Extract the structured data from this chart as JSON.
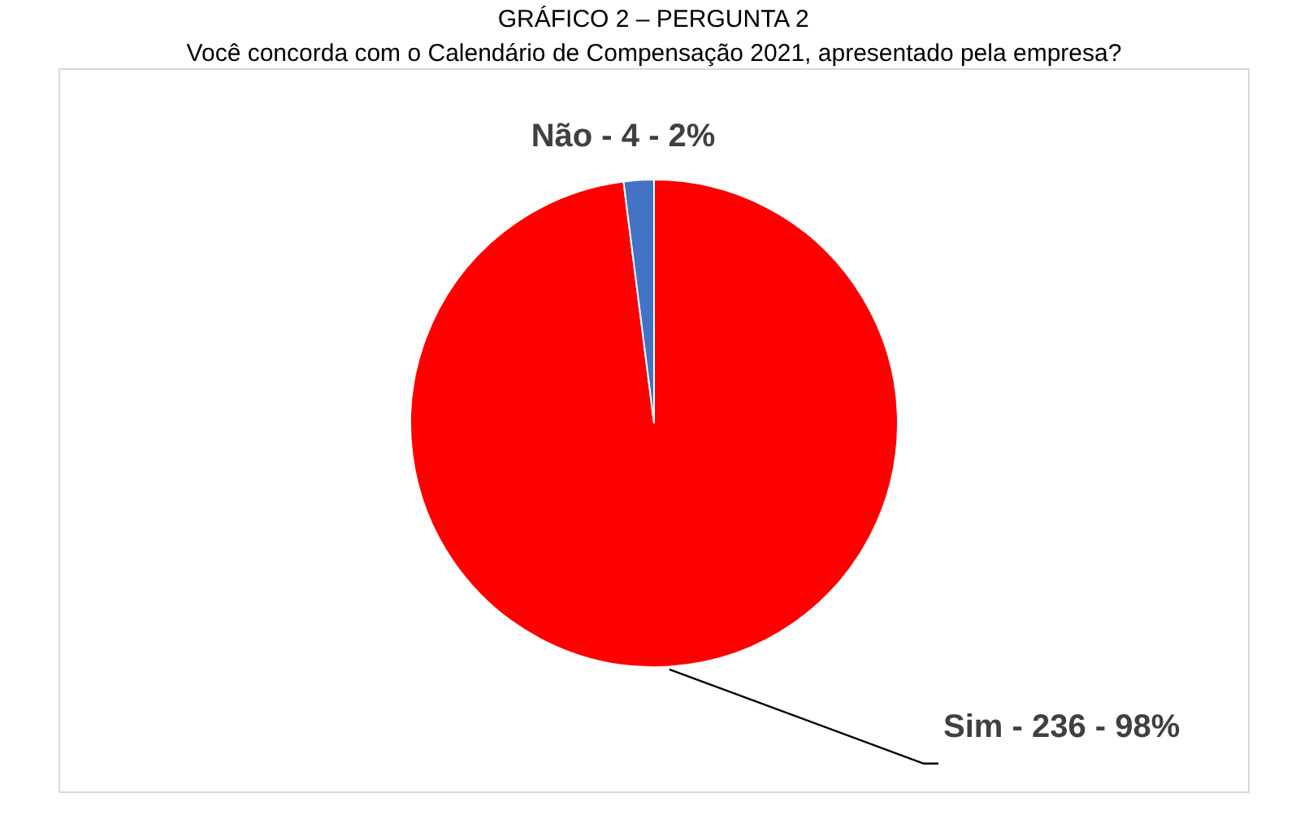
{
  "chart_data": {
    "type": "pie",
    "title": "GRÁFICO 2 – PERGUNTA 2",
    "subtitle": "Você concorda com o Calendário de Compensação 2021, apresentado pela empresa?",
    "categories": [
      "Sim -  236  - 98%",
      "Não - 4 - 2%"
    ],
    "values": [
      98,
      2
    ],
    "colors": [
      "#ff0000",
      "#4472c4"
    ]
  }
}
